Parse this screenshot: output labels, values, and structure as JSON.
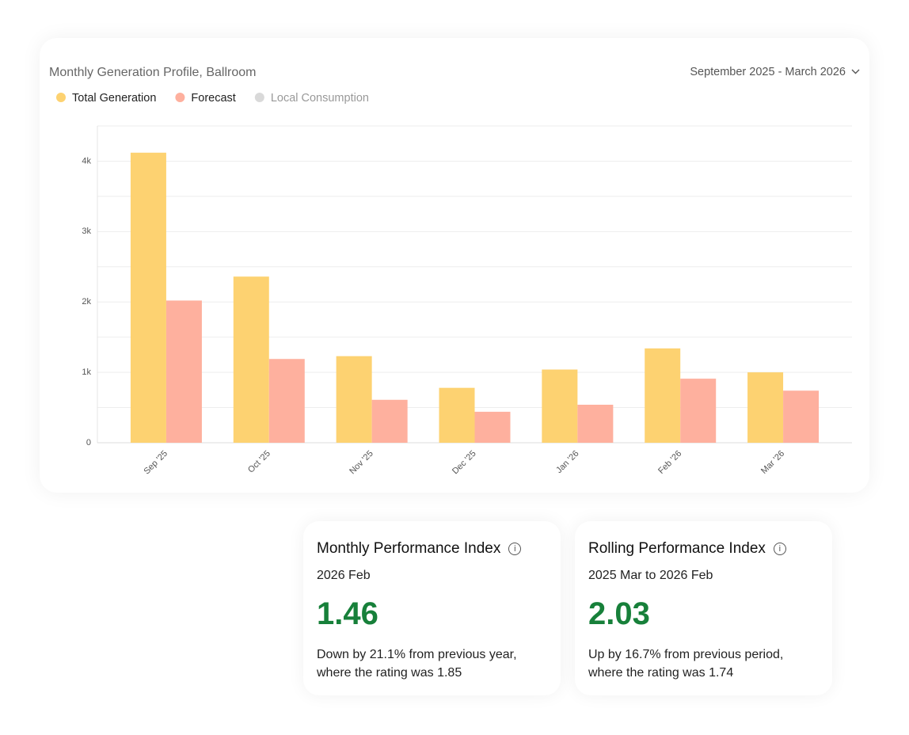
{
  "chart_data": {
    "type": "bar",
    "title": "Monthly Generation Profile, Ballroom",
    "categories": [
      "Sep '25",
      "Oct '25",
      "Nov '25",
      "Dec '25",
      "Jan '26",
      "Feb '26",
      "Mar '26"
    ],
    "series": [
      {
        "name": "Total Generation",
        "color": "#fdd271",
        "values": [
          4120,
          2360,
          1230,
          780,
          1040,
          1340,
          1000
        ]
      },
      {
        "name": "Forecast",
        "color": "#feb09e",
        "values": [
          2020,
          1190,
          610,
          440,
          540,
          910,
          740
        ]
      }
    ],
    "hidden_series": [
      {
        "name": "Local Consumption",
        "color": "#d9d9d9"
      }
    ],
    "ylim": [
      0,
      4500
    ],
    "yticks": [
      0,
      {
        "value": 1000,
        "label": "1k"
      },
      {
        "value": 2000,
        "label": "2k"
      },
      {
        "value": 3000,
        "label": "3k"
      },
      {
        "value": 4000,
        "label": "4k"
      }
    ],
    "minor_yticks": [
      500,
      1500,
      2500,
      3500,
      4500
    ],
    "grid": true
  },
  "date_range": "September 2025 - March 2026",
  "cards": [
    {
      "title": "Monthly Performance Index",
      "period": "2026 Feb",
      "value": "1.46",
      "description": [
        "Down by 21.1% from previous year,",
        "where the rating was 1.85"
      ]
    },
    {
      "title": "Rolling Performance Index",
      "period": "2025 Mar to 2026 Feb",
      "value": "2.03",
      "description": [
        "Up by 16.7% from previous period,",
        "where the rating was 1.74"
      ]
    }
  ]
}
